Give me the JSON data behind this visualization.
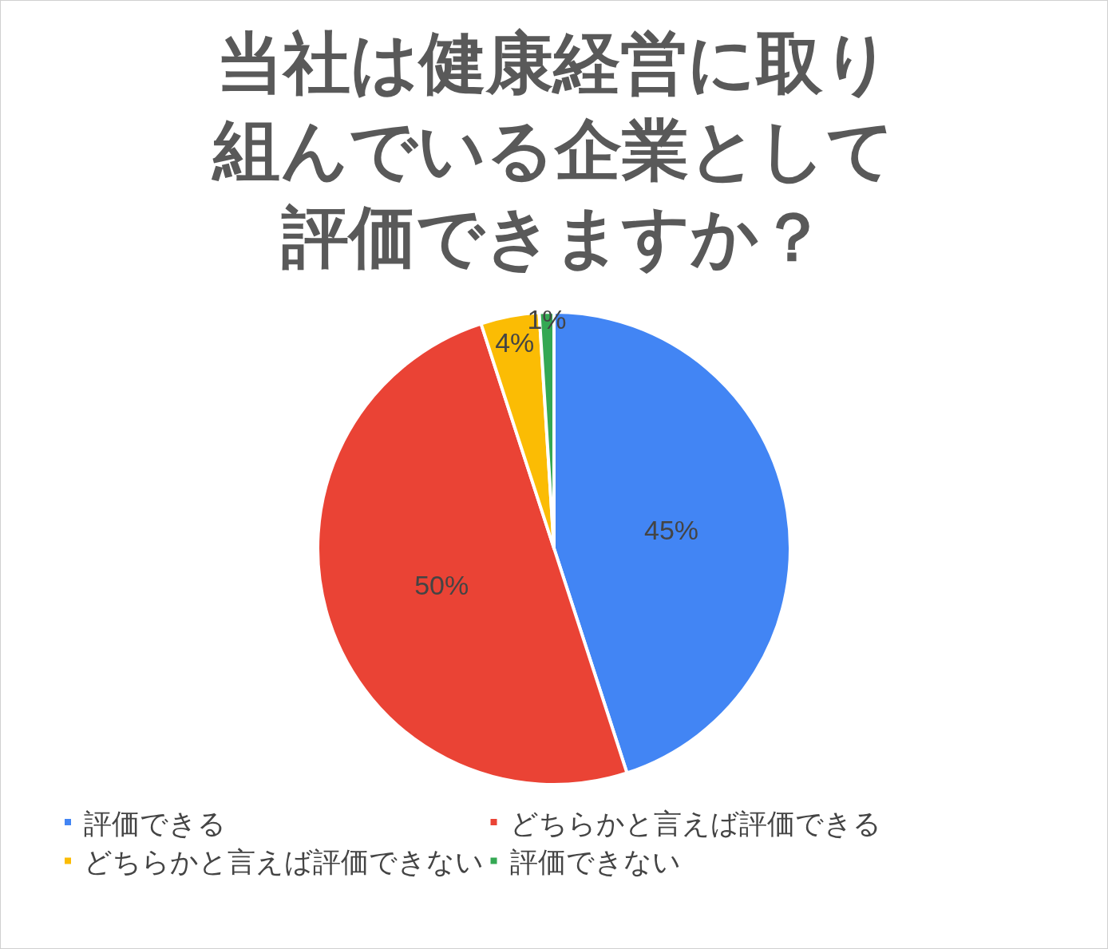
{
  "chart_data": {
    "type": "pie",
    "title": "当社は健康経営に取り組んでいる企業として評価できますか？",
    "categories": [
      "評価できる",
      "どちらかと言えば評価できる",
      "どちらかと言えば評価できない",
      "評価できない"
    ],
    "values": [
      45,
      50,
      4,
      1
    ],
    "value_labels": [
      "45%",
      "50%",
      "4%",
      "1%"
    ],
    "colors": [
      "#4285f4",
      "#ea4335",
      "#fbbc04",
      "#34a853"
    ],
    "legend": "bottom"
  }
}
